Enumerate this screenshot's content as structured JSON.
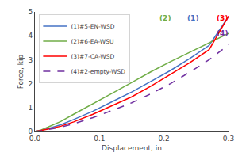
{
  "chart_data": {
    "type": "line",
    "xlabel": "Displacement, in",
    "ylabel": "Force, kip",
    "x": [
      0.0,
      0.005,
      0.01,
      0.02,
      0.04,
      0.06,
      0.09,
      0.12,
      0.15,
      0.18,
      0.21,
      0.24,
      0.27,
      0.3
    ],
    "xlim": [
      0.0,
      0.3
    ],
    "ylim": [
      0,
      5
    ],
    "xticks": [
      {
        "value": 0.0,
        "label": "0.0"
      },
      0.1,
      0.2,
      0.3
    ],
    "yticks": [
      0,
      1,
      2,
      3,
      4,
      5
    ],
    "grid": false,
    "legend": "upper left",
    "series": [
      {
        "name": "(1)#5-EN-WSD",
        "color": "#4472C4",
        "line_style": "solid",
        "values": [
          0.0,
          0.02,
          0.05,
          0.12,
          0.28,
          0.5,
          0.85,
          1.25,
          1.65,
          2.1,
          2.55,
          3.05,
          3.6,
          4.8
        ]
      },
      {
        "name": "(2)#6-EA-WSU",
        "color": "#70AD47",
        "line_style": "solid",
        "values": [
          0.0,
          0.03,
          0.07,
          0.18,
          0.42,
          0.72,
          1.15,
          1.6,
          2.05,
          2.5,
          2.92,
          3.32,
          3.72,
          4.1
        ]
      },
      {
        "name": "(3)#7-CA-WSD",
        "color": "#FF0000",
        "line_style": "solid",
        "values": [
          0.0,
          0.02,
          0.04,
          0.1,
          0.22,
          0.4,
          0.72,
          1.08,
          1.45,
          1.9,
          2.38,
          2.88,
          3.42,
          4.82
        ]
      },
      {
        "name": "(4)#2-empty-WSD",
        "color": "#7030A0",
        "line_style": "dashed",
        "values": [
          0.0,
          0.01,
          0.03,
          0.08,
          0.18,
          0.32,
          0.58,
          0.88,
          1.2,
          1.58,
          2.0,
          2.48,
          3.0,
          3.62
        ]
      }
    ],
    "annotations": [
      {
        "text": "(2)",
        "x": 0.202,
        "y": 4.72,
        "color": "#70AD47"
      },
      {
        "text": "(1)",
        "x": 0.245,
        "y": 4.72,
        "color": "#4472C4"
      },
      {
        "text": "(3)",
        "x": 0.291,
        "y": 4.72,
        "color": "#FF0000"
      },
      {
        "text": "(4)",
        "x": 0.291,
        "y": 4.1,
        "color": "#7030A0"
      }
    ]
  }
}
